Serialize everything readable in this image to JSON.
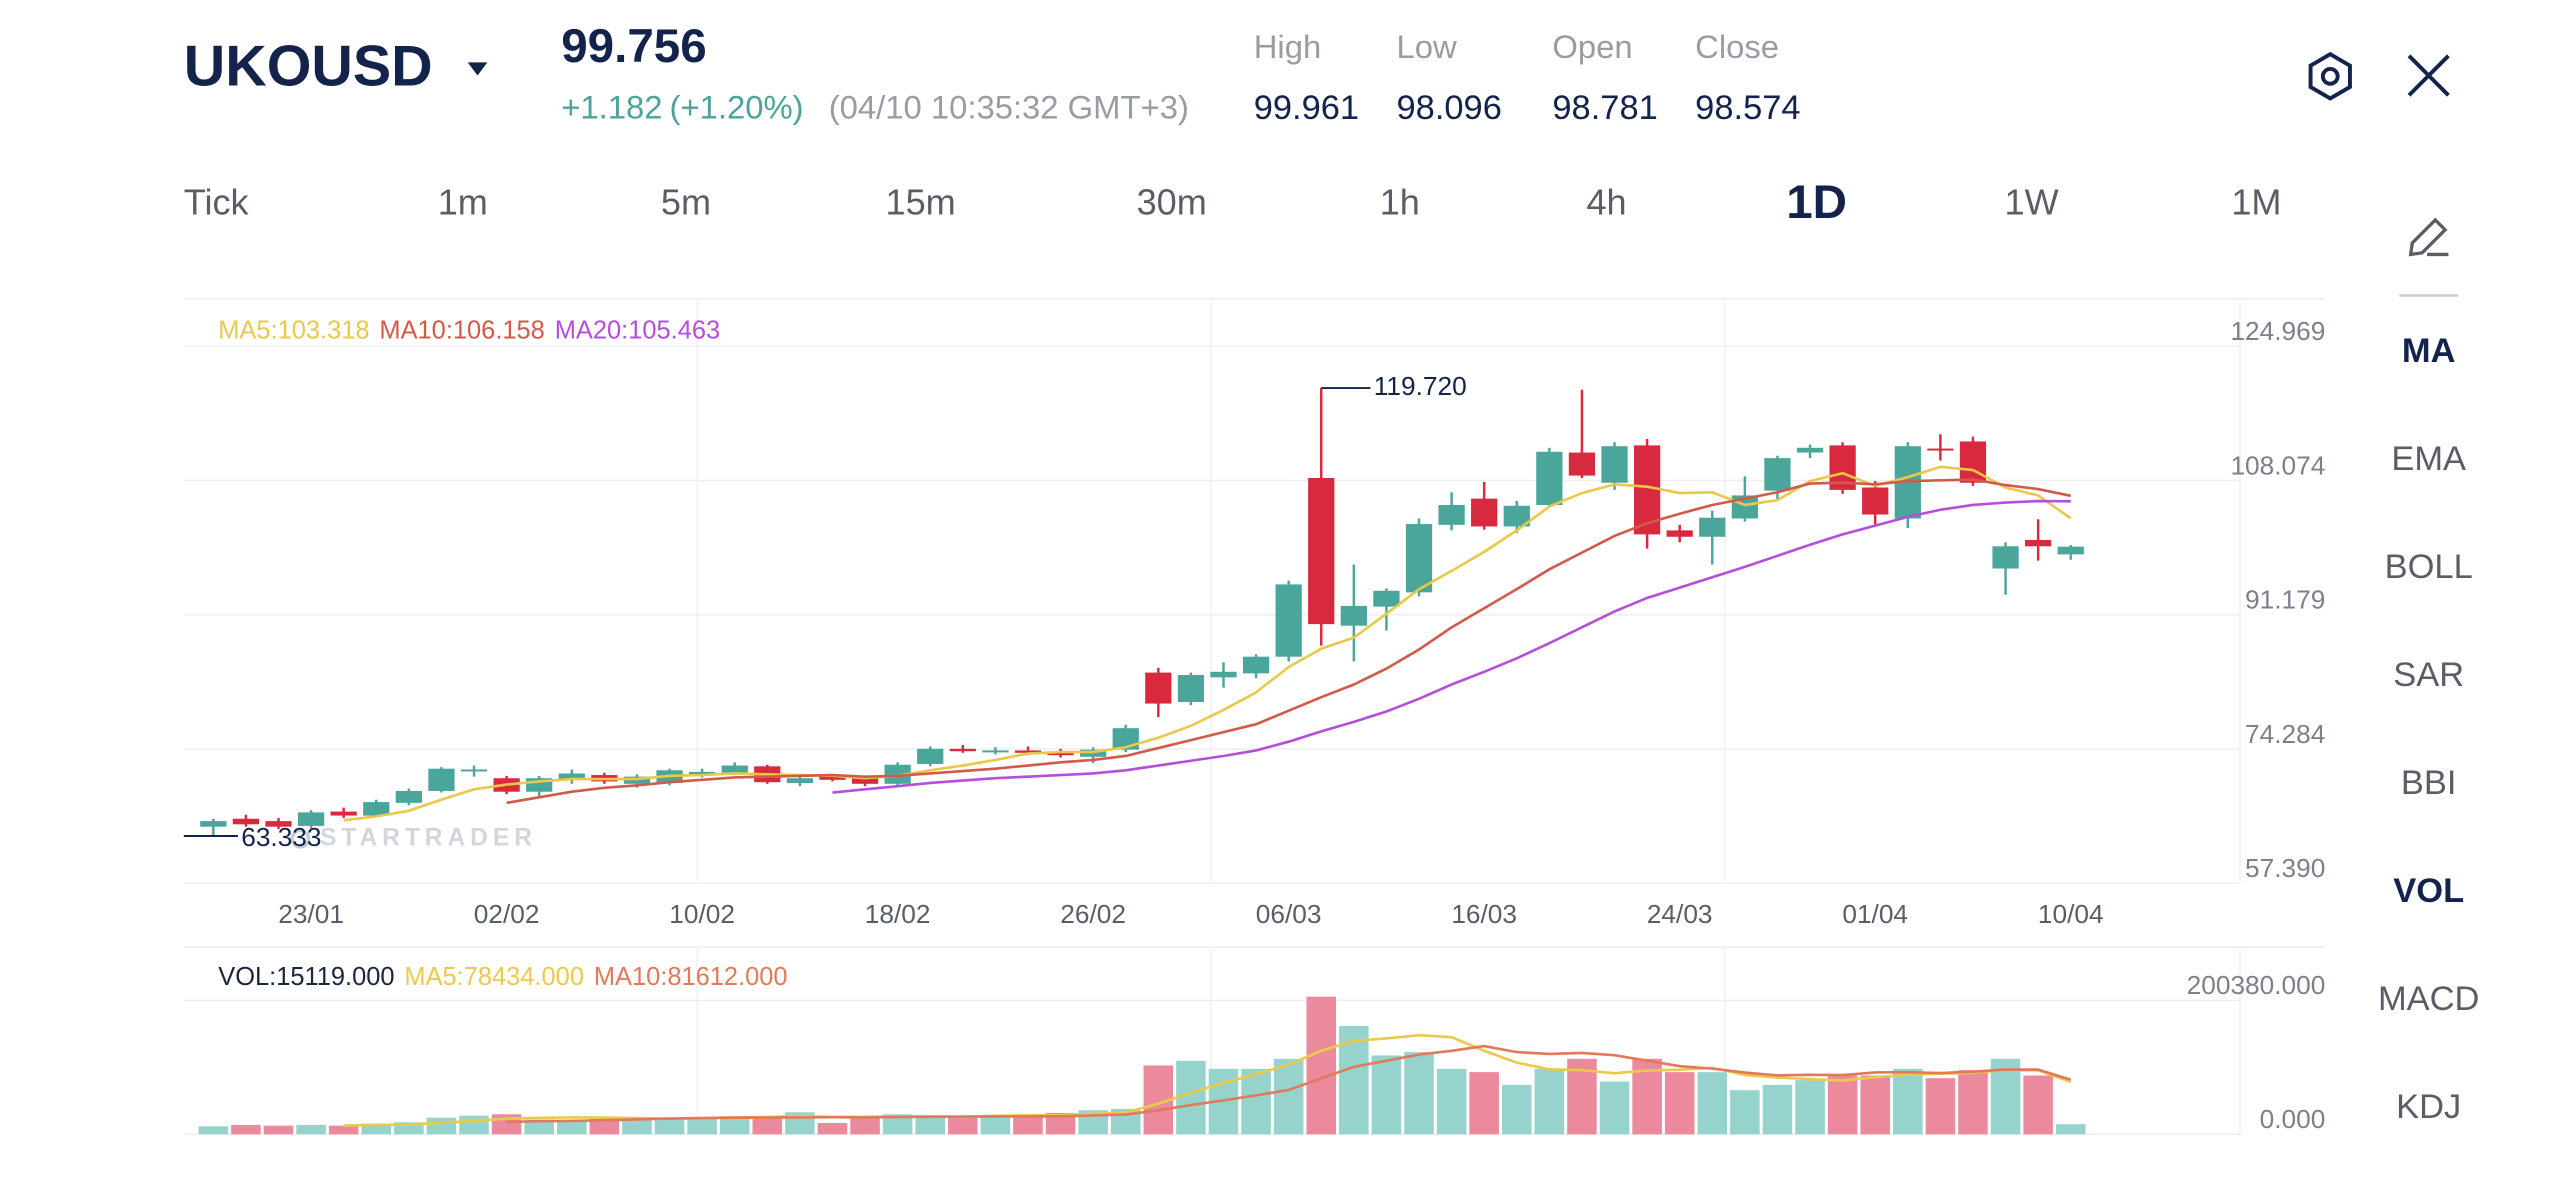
{
  "header": {
    "symbol": "UKOUSD",
    "price": "99.756",
    "change": "+1.182",
    "change_pct": "(+1.20%)",
    "timestamp": "(04/10 10:35:32 GMT+3)",
    "stats": [
      {
        "label": "High",
        "value": "99.961"
      },
      {
        "label": "Low",
        "value": "98.096"
      },
      {
        "label": "Open",
        "value": "98.781"
      },
      {
        "label": "Close",
        "value": "98.574"
      }
    ]
  },
  "timeframes": {
    "items": [
      "Tick",
      "1m",
      "5m",
      "15m",
      "30m",
      "1h",
      "4h",
      "1D",
      "1W",
      "1M"
    ],
    "active": "1D"
  },
  "indicators": {
    "items": [
      "MA",
      "EMA",
      "BOLL",
      "SAR",
      "BBI",
      "VOL",
      "MACD",
      "KDJ"
    ],
    "active": [
      "MA",
      "VOL"
    ]
  },
  "watermark": "STARTRADER",
  "chart_data": [
    {
      "type": "candlestick",
      "up_color": "#4aa69a",
      "down_color": "#d9293e",
      "categories": [
        null,
        null,
        null,
        "23/01",
        null,
        null,
        null,
        null,
        null,
        "02/02",
        null,
        null,
        null,
        null,
        null,
        "10/02",
        null,
        null,
        null,
        null,
        null,
        "18/02",
        null,
        null,
        null,
        null,
        null,
        "26/02",
        null,
        null,
        null,
        null,
        null,
        "06/03",
        null,
        null,
        null,
        null,
        null,
        "16/03",
        null,
        null,
        null,
        null,
        null,
        "24/03",
        null,
        null,
        null,
        null,
        null,
        "01/04",
        null,
        null,
        null,
        null,
        null,
        "10/04"
      ],
      "open": [
        64.5,
        65.5,
        65.2,
        64.6,
        66.4,
        65.9,
        67.5,
        69,
        71.5,
        70.6,
        68.9,
        70.4,
        71,
        69.9,
        70,
        71,
        71.3,
        72.1,
        70,
        70.9,
        70.6,
        69.9,
        72.4,
        74.3,
        73.9,
        74.1,
        73.9,
        73.3,
        74.2,
        83.9,
        80.2,
        83.3,
        83.8,
        85.9,
        108.4,
        89.8,
        92.2,
        94.0,
        102.5,
        105.8,
        102.3,
        105,
        111.6,
        107.8,
        112.5,
        101.8,
        101,
        103.3,
        106.8,
        111.6,
        112.5,
        107.2,
        103.3,
        112.1,
        113,
        97.0,
        100.6,
        98.781
      ],
      "high": [
        65.5,
        66,
        65.6,
        66.6,
        66.9,
        67.9,
        69.3,
        72,
        72.2,
        70.9,
        70.9,
        71.7,
        71.3,
        71.1,
        71.8,
        71.8,
        72.6,
        72.3,
        70.9,
        71.1,
        70.9,
        72.6,
        74.6,
        74.8,
        74.5,
        74.6,
        74.3,
        74.5,
        77.3,
        84.5,
        83.9,
        85.2,
        86.2,
        95.5,
        119.72,
        97.5,
        94.5,
        103.3,
        106.6,
        107.9,
        105.5,
        112.2,
        119.5,
        112.9,
        113.3,
        102.5,
        104.3,
        108.6,
        111.2,
        112.6,
        112.9,
        108.0,
        112.9,
        113.9,
        113.6,
        100.3,
        103.2,
        99.961
      ],
      "low": [
        63.333,
        64.5,
        64.2,
        64.3,
        65.6,
        65.7,
        67.2,
        68.8,
        70.8,
        68.6,
        68.2,
        69.9,
        69.9,
        69.4,
        69.7,
        70.7,
        71,
        69.9,
        69.6,
        70.2,
        69.6,
        69.5,
        72.1,
        73.8,
        73.6,
        73.5,
        73.2,
        72.5,
        73.9,
        78.3,
        79.8,
        82,
        83.2,
        85.3,
        87.3,
        85.3,
        89.2,
        93.5,
        101.8,
        101.9,
        101.5,
        104.8,
        108.4,
        106.9,
        99.5,
        100.3,
        97.5,
        102.9,
        105.6,
        110.9,
        106.4,
        102.5,
        102.1,
        110.6,
        107.4,
        93.7,
        98.0,
        98.096
      ],
      "close": [
        65.2,
        64.8,
        64.5,
        66.3,
        65.9,
        67.6,
        69,
        71.8,
        71.7,
        68.9,
        70.6,
        71.2,
        70.2,
        70.8,
        71.6,
        71.4,
        72.2,
        70.1,
        70.6,
        70.4,
        69.9,
        72.3,
        74.3,
        74,
        74.1,
        73.8,
        73.5,
        74.2,
        76.9,
        80.0,
        83.6,
        84.0,
        85.9,
        95.0,
        90.0,
        92.3,
        94.2,
        102.6,
        105.0,
        102.3,
        104.9,
        111.7,
        108.7,
        112.4,
        101.3,
        101,
        103.4,
        106.2,
        110.9,
        112.2,
        106.9,
        103.8,
        112.4,
        111.9,
        107.8,
        99.8,
        99.8,
        99.756
      ],
      "series": [
        {
          "name": "MA5:103.318",
          "color": "#e9c84a",
          "values": [
            null,
            null,
            null,
            null,
            65.3,
            65.8,
            66.5,
            67.9,
            69.2,
            69.8,
            70.2,
            70.5,
            70.5,
            70.5,
            70.9,
            71,
            71.2,
            71.1,
            71,
            70.9,
            70.6,
            70.9,
            71.6,
            72.2,
            72.9,
            73.7,
            73.9,
            73.9,
            74.5,
            75.7,
            77.2,
            79.2,
            81.4,
            84.6,
            86.9,
            88.3,
            91.3,
            94.4,
            96.7,
            99.1,
            101.8,
            104.8,
            106.5,
            107.6,
            107.3,
            106.5,
            106.6,
            105,
            105.6,
            108,
            109,
            107.4,
            108.5,
            109.8,
            109.4,
            107.2,
            106.2,
            103.318
          ]
        },
        {
          "name": "MA10:106.158",
          "color": "#d25a4a",
          "values": [
            null,
            null,
            null,
            null,
            null,
            null,
            null,
            null,
            null,
            67.5,
            68.2,
            68.9,
            69.4,
            69.7,
            70.1,
            70.4,
            70.7,
            70.8,
            70.9,
            71,
            70.8,
            70.9,
            71.2,
            71.5,
            71.8,
            72.2,
            72.6,
            72.9,
            73.4,
            74.4,
            75.4,
            76.4,
            77.4,
            79.1,
            80.8,
            82.4,
            84.4,
            86.8,
            89.6,
            92,
            94.4,
            96.9,
            99,
            101.1,
            102.7,
            103.9,
            105,
            105.8,
            106.6,
            107.7,
            107.8,
            107.6,
            108,
            108.1,
            108.2,
            107.5,
            107,
            106.158
          ]
        },
        {
          "name": "MA20:105.463",
          "color": "#b44fd9",
          "values": [
            null,
            null,
            null,
            null,
            null,
            null,
            null,
            null,
            null,
            null,
            null,
            null,
            null,
            null,
            null,
            null,
            null,
            null,
            null,
            68.8,
            69.2,
            69.6,
            70,
            70.3,
            70.6,
            70.8,
            71,
            71.2,
            71.6,
            72.2,
            72.8,
            73.4,
            74.1,
            75.2,
            76.5,
            77.7,
            79,
            80.6,
            82.4,
            84,
            85.7,
            87.6,
            89.6,
            91.6,
            93.3,
            94.6,
            95.9,
            97.2,
            98.6,
            100,
            101.3,
            102.4,
            103.5,
            104.4,
            105,
            105.3,
            105.5,
            105.463
          ]
        }
      ],
      "annotations": [
        {
          "label": "119.720",
          "value": 119.72
        },
        {
          "label": "63.333",
          "value": 63.333
        }
      ],
      "ylim": [
        57.39,
        130.961
      ],
      "yticks": [
        {
          "value": 57.39,
          "label": "57.390"
        },
        74.284,
        91.179,
        108.074,
        124.969
      ],
      "grid": true
    },
    {
      "type": "bar",
      "up_color": "#96d3cd",
      "down_color": "#ea8a9c",
      "series": [
        {
          "name": "VOL:15119.000",
          "color": "#1b2540",
          "values": [
            12000,
            14000,
            13000,
            14000,
            13000,
            16000,
            18000,
            25000,
            28000,
            30000,
            22000,
            21000,
            24000,
            25000,
            25000,
            26000,
            27000,
            26000,
            33000,
            17000,
            28000,
            30000,
            27000,
            28000,
            26000,
            30000,
            32000,
            36000,
            38000,
            103000,
            110000,
            98000,
            98000,
            113000,
            206000,
            162000,
            118000,
            123000,
            98000,
            93000,
            74000,
            98000,
            113000,
            79000,
            113000,
            93000,
            93000,
            66000,
            74000,
            81000,
            88000,
            88000,
            98000,
            84000,
            96000,
            113000,
            88000,
            15119
          ]
        },
        {
          "name": "MA5:78434.000",
          "color": "#ecc94b",
          "values": [
            null,
            null,
            null,
            null,
            13200,
            14000,
            14800,
            17200,
            20200,
            23400,
            24600,
            25200,
            25000,
            24400,
            23400,
            24200,
            25400,
            25800,
            27400,
            25800,
            26200,
            26800,
            27000,
            26000,
            27600,
            28200,
            28600,
            30400,
            32400,
            46000,
            62000,
            77000,
            90000,
            104000,
            125000,
            139800,
            143400,
            148400,
            145400,
            125000,
            107200,
            97200,
            96000,
            91400,
            95400,
            96800,
            99400,
            88800,
            85000,
            82600,
            80400,
            85400,
            89000,
            90800,
            92000,
            96000,
            95800,
            78434
          ]
        },
        {
          "name": "MA10:81612.000",
          "color": "#e07a5a",
          "values": [
            null,
            null,
            null,
            null,
            null,
            null,
            null,
            null,
            null,
            18500,
            19600,
            20000,
            21200,
            22300,
            23500,
            24400,
            24900,
            25000,
            25300,
            25600,
            25200,
            26000,
            26200,
            26500,
            26800,
            26700,
            27000,
            28300,
            29600,
            36000,
            43800,
            50800,
            58300,
            66300,
            83800,
            100900,
            110200,
            119400,
            124900,
            132000,
            123000,
            120200,
            121700,
            118400,
            110200,
            102000,
            98300,
            92400,
            88200,
            89000,
            88600,
            92600,
            93000,
            91600,
            93700,
            96800,
            96800,
            81612
          ]
        }
      ],
      "ylim": [
        0,
        280000
      ],
      "yticks": [
        {
          "value": 0,
          "label": "0.000"
        },
        {
          "value": 200380,
          "label": "200380.000"
        }
      ],
      "grid": true
    }
  ]
}
